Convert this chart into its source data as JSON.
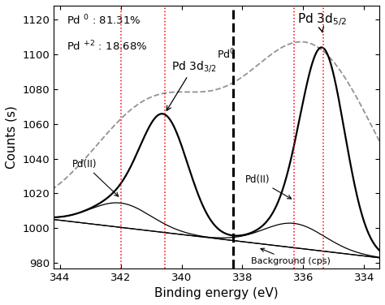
{
  "xlabel": "Binding energy (eV)",
  "ylabel": "Counts (s)",
  "xlim": [
    344.2,
    333.5
  ],
  "ylim": [
    977,
    1128
  ],
  "yticks": [
    980,
    1000,
    1020,
    1040,
    1060,
    1080,
    1100,
    1120
  ],
  "xticks": [
    344,
    342,
    340,
    338,
    336,
    334
  ],
  "background_color": "#ffffff",
  "annotation_text1": "Pd $^{0}$ : 81.31%",
  "annotation_text2": "Pd $^{+2}$ : 18.68%",
  "vline_black": 338.3,
  "vline_red1": 342.0,
  "vline_red2": 340.55,
  "vline_red3": 336.3,
  "vline_red4": 335.35
}
